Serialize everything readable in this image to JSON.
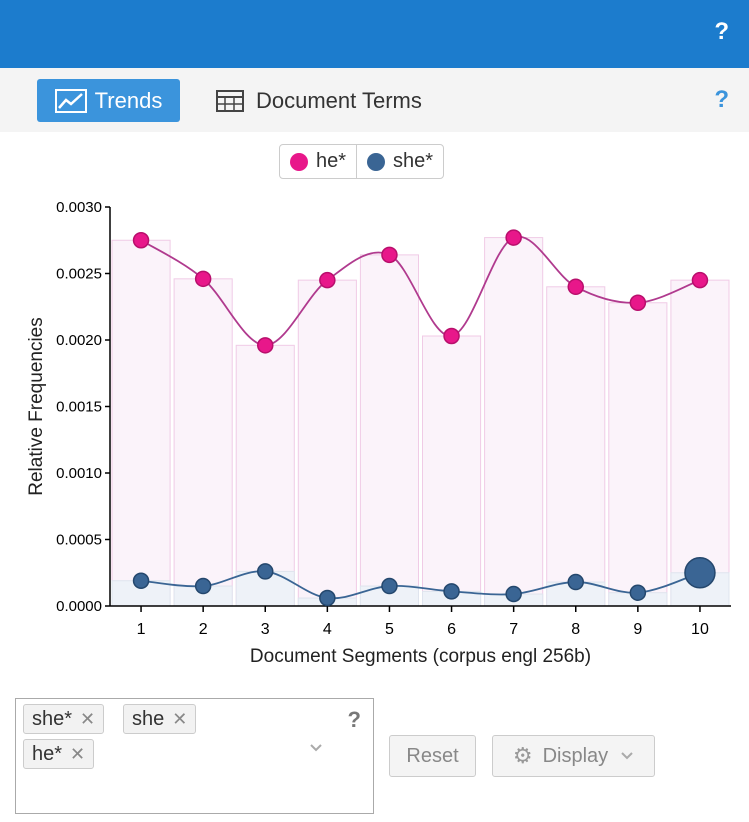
{
  "header": {
    "help": "?"
  },
  "tabs": {
    "trends": "Trends",
    "document_terms": "Document Terms",
    "help": "?"
  },
  "legend": [
    {
      "label": "he*",
      "color": "#e8178a"
    },
    {
      "label": "she*",
      "color": "#3a6594"
    }
  ],
  "chart_data": {
    "type": "line",
    "xlabel": "Document Segments (corpus engl 256b)",
    "ylabel": "Relative Frequencies",
    "ylim": [
      0,
      0.003
    ],
    "categories": [
      "1",
      "2",
      "3",
      "4",
      "5",
      "6",
      "7",
      "8",
      "9",
      "10"
    ],
    "yticks": [
      "0.0000",
      "0.0005",
      "0.0010",
      "0.0015",
      "0.0020",
      "0.0025",
      "0.0030"
    ],
    "series": [
      {
        "name": "he*",
        "color": "#e8178a",
        "line_color": "#b03a8e",
        "values": [
          0.00275,
          0.00246,
          0.00196,
          0.00245,
          0.00264,
          0.00203,
          0.00277,
          0.0024,
          0.00228,
          0.00245
        ]
      },
      {
        "name": "she*",
        "color": "#3a6594",
        "line_color": "#3a6594",
        "values": [
          0.00019,
          0.00015,
          0.00026,
          6e-05,
          0.00015,
          0.00011,
          9e-05,
          0.00018,
          0.0001,
          0.00025
        ]
      }
    ],
    "bars": [
      0.00275,
      0.00246,
      0.00196,
      0.00245,
      0.00264,
      0.00203,
      0.00277,
      0.0024,
      0.00228,
      0.00245
    ],
    "highlight_index": 9
  },
  "terms": {
    "chips": [
      {
        "label": "she*"
      },
      {
        "label": "she"
      },
      {
        "label": "he*"
      }
    ],
    "help": "?"
  },
  "buttons": {
    "reset": "Reset",
    "display": "Display"
  }
}
